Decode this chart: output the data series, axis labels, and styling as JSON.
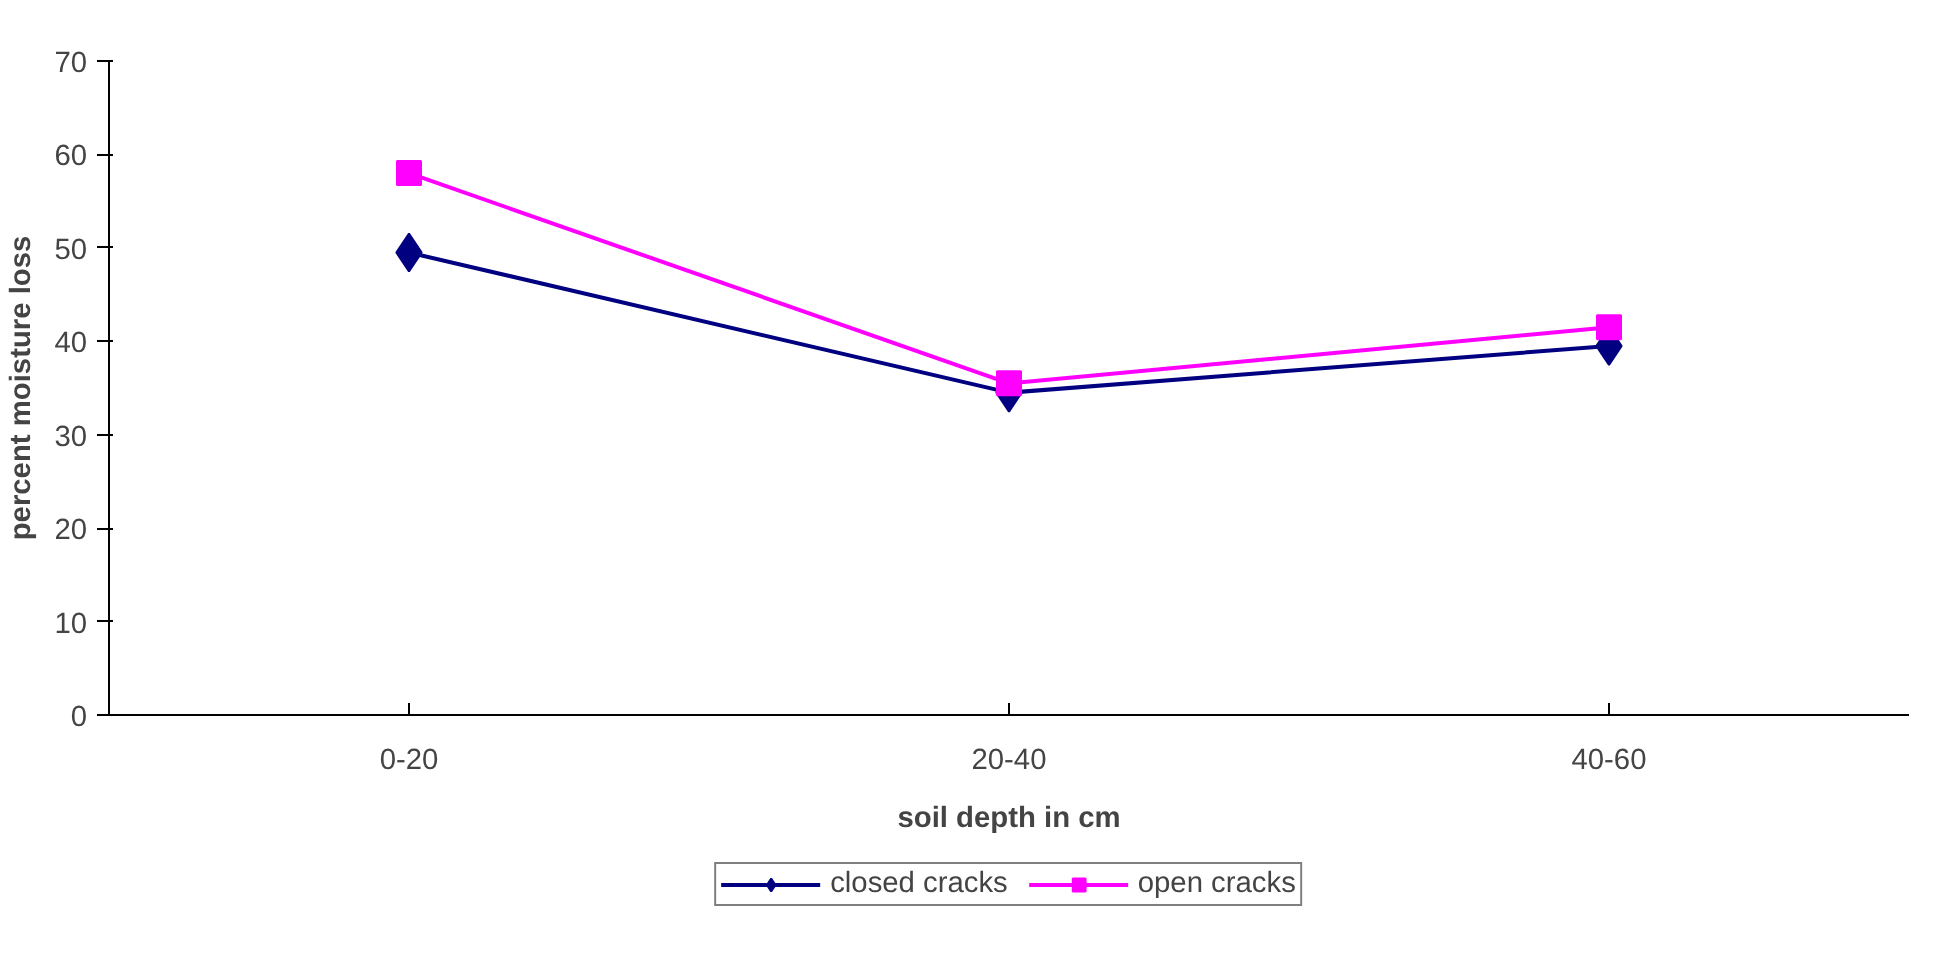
{
  "chart_data": {
    "type": "line",
    "xlabel": "soil depth in cm",
    "ylabel": "percent moisture loss",
    "categories": [
      "0-20",
      "20-40",
      "40-60"
    ],
    "series": [
      {
        "name": "closed cracks",
        "color": "#000080",
        "values": [
          49.5,
          34.5,
          39.5
        ],
        "marker": "diamond"
      },
      {
        "name": "open cracks",
        "color": "#ff00ff",
        "values": [
          58,
          35.5,
          41.5
        ],
        "marker": "square"
      }
    ],
    "ylim": [
      0,
      70
    ],
    "yticks": [
      0,
      10,
      20,
      30,
      40,
      50,
      60,
      70
    ],
    "grid": false,
    "legend": "bottom",
    "line_style": "solid"
  }
}
